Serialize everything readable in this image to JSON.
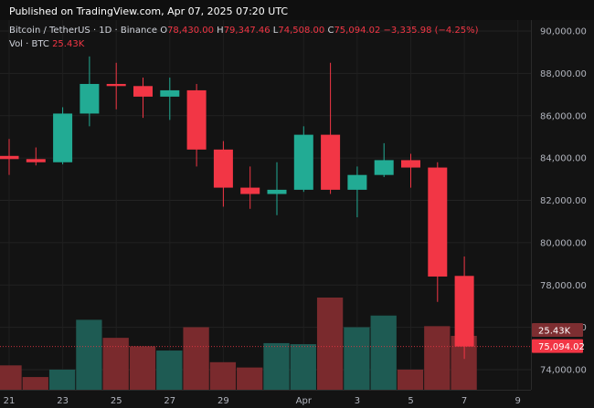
{
  "header": {
    "published": "Published on TradingView.com, Apr 07, 2025 07:20 UTC"
  },
  "legend": {
    "symbol": "Bitcoin / TetherUS · 1D · Binance",
    "o_label": "O",
    "o_value": "78,430.00",
    "h_label": "H",
    "h_value": "79,347.46",
    "l_label": "L",
    "l_value": "74,508.00",
    "c_label": "C",
    "c_value": "75,094.02",
    "change": "−3,335.98 (−4.25%)",
    "vol_label": "Vol · BTC",
    "vol_value": "25.43K"
  },
  "colors": {
    "up": "#22ab94",
    "down": "#f23645",
    "vol_up": "#1e5b53",
    "vol_down": "#7a2a2d",
    "price_label_bg": "#f23645",
    "vol_label_bg": "#7d2e31"
  },
  "price_badge": "75,094.02",
  "volume_badge": "25.43K",
  "chart_data": {
    "type": "candlestick",
    "ylim": [
      72800,
      90600
    ],
    "yticks": [
      74000,
      76000,
      78000,
      80000,
      82000,
      84000,
      86000,
      88000,
      90000
    ],
    "ytick_labels": [
      "74,000.00",
      "76,000.00",
      "78,000.00",
      "80,000.00",
      "82,000.00",
      "84,000.00",
      "86,000.00",
      "88,000.00",
      "90,000.00"
    ],
    "xticks": [
      {
        "label": "21",
        "day": 0
      },
      {
        "label": "23",
        "day": 2
      },
      {
        "label": "25",
        "day": 4
      },
      {
        "label": "27",
        "day": 6
      },
      {
        "label": "29",
        "day": 8
      },
      {
        "label": "Apr",
        "day": 11
      },
      {
        "label": "3",
        "day": 13
      },
      {
        "label": "5",
        "day": 15
      },
      {
        "label": "7",
        "day": 17
      },
      {
        "label": "9",
        "day": 19
      }
    ],
    "candles": [
      {
        "day": 0,
        "o": 84100,
        "h": 84900,
        "l": 83200,
        "c": 83950,
        "v": 11.5
      },
      {
        "day": 1,
        "o": 83950,
        "h": 84500,
        "l": 83650,
        "c": 83800,
        "v": 6.0
      },
      {
        "day": 2,
        "o": 83800,
        "h": 86400,
        "l": 83700,
        "c": 86100,
        "v": 9.5
      },
      {
        "day": 3,
        "o": 86100,
        "h": 88800,
        "l": 85500,
        "c": 87500,
        "v": 33.0
      },
      {
        "day": 4,
        "o": 87500,
        "h": 88500,
        "l": 86300,
        "c": 87400,
        "v": 24.5
      },
      {
        "day": 5,
        "o": 87400,
        "h": 87800,
        "l": 85900,
        "c": 86900,
        "v": 20.5
      },
      {
        "day": 6,
        "o": 86900,
        "h": 87800,
        "l": 85800,
        "c": 87200,
        "v": 18.5
      },
      {
        "day": 7,
        "o": 87200,
        "h": 87500,
        "l": 83600,
        "c": 84400,
        "v": 29.5
      },
      {
        "day": 8,
        "o": 84400,
        "h": 84800,
        "l": 81700,
        "c": 82600,
        "v": 13.0
      },
      {
        "day": 9,
        "o": 82600,
        "h": 83600,
        "l": 81600,
        "c": 82300,
        "v": 10.5
      },
      {
        "day": 10,
        "o": 82300,
        "h": 83800,
        "l": 81300,
        "c": 82500,
        "v": 22.0
      },
      {
        "day": 11,
        "o": 82500,
        "h": 85500,
        "l": 82400,
        "c": 85100,
        "v": 21.5
      },
      {
        "day": 12,
        "o": 85100,
        "h": 88500,
        "l": 82300,
        "c": 82500,
        "v": 43.5
      },
      {
        "day": 13,
        "o": 82500,
        "h": 83600,
        "l": 81200,
        "c": 83200,
        "v": 29.5
      },
      {
        "day": 14,
        "o": 83200,
        "h": 84700,
        "l": 83100,
        "c": 83900,
        "v": 35.0
      },
      {
        "day": 15,
        "o": 83900,
        "h": 84200,
        "l": 82600,
        "c": 83550,
        "v": 9.5
      },
      {
        "day": 16,
        "o": 83550,
        "h": 83800,
        "l": 77200,
        "c": 78400,
        "v": 30.0
      },
      {
        "day": 17,
        "o": 78430,
        "h": 79347.46,
        "l": 74508,
        "c": 75094.02,
        "v": 25.43
      }
    ],
    "volume_max": 70
  }
}
